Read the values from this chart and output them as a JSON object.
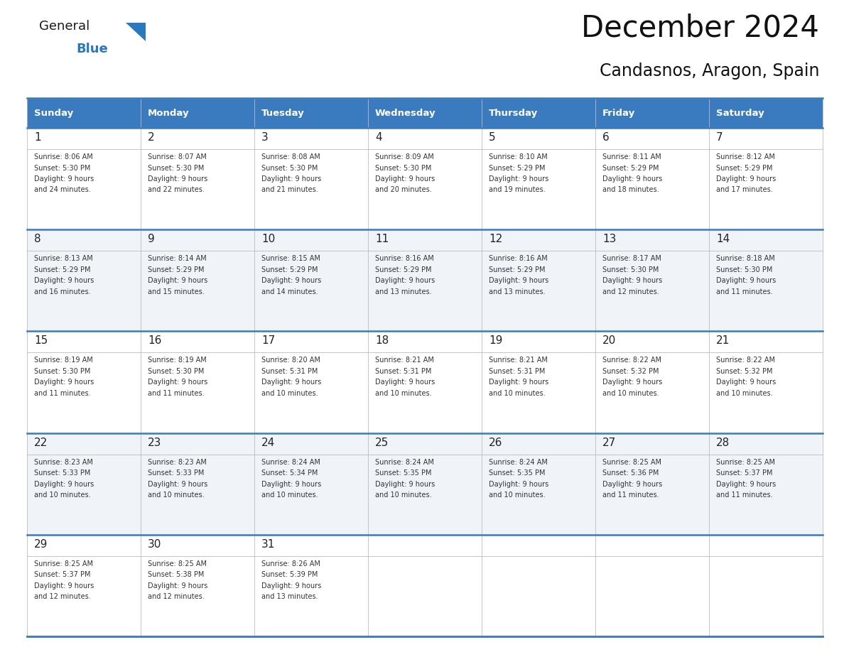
{
  "title": "December 2024",
  "subtitle": "Candasnos, Aragon, Spain",
  "header_bg": "#3a7abf",
  "header_text": "#ffffff",
  "row_bg_even": "#f0f4f8",
  "row_bg_odd": "#ffffff",
  "border_color": "#3a7abf",
  "day_headers": [
    "Sunday",
    "Monday",
    "Tuesday",
    "Wednesday",
    "Thursday",
    "Friday",
    "Saturday"
  ],
  "days": [
    {
      "day": 1,
      "col": 0,
      "row": 0,
      "sunrise": "8:06 AM",
      "sunset": "5:30 PM",
      "daylight_min": "24"
    },
    {
      "day": 2,
      "col": 1,
      "row": 0,
      "sunrise": "8:07 AM",
      "sunset": "5:30 PM",
      "daylight_min": "22"
    },
    {
      "day": 3,
      "col": 2,
      "row": 0,
      "sunrise": "8:08 AM",
      "sunset": "5:30 PM",
      "daylight_min": "21"
    },
    {
      "day": 4,
      "col": 3,
      "row": 0,
      "sunrise": "8:09 AM",
      "sunset": "5:30 PM",
      "daylight_min": "20"
    },
    {
      "day": 5,
      "col": 4,
      "row": 0,
      "sunrise": "8:10 AM",
      "sunset": "5:29 PM",
      "daylight_min": "19"
    },
    {
      "day": 6,
      "col": 5,
      "row": 0,
      "sunrise": "8:11 AM",
      "sunset": "5:29 PM",
      "daylight_min": "18"
    },
    {
      "day": 7,
      "col": 6,
      "row": 0,
      "sunrise": "8:12 AM",
      "sunset": "5:29 PM",
      "daylight_min": "17"
    },
    {
      "day": 8,
      "col": 0,
      "row": 1,
      "sunrise": "8:13 AM",
      "sunset": "5:29 PM",
      "daylight_min": "16"
    },
    {
      "day": 9,
      "col": 1,
      "row": 1,
      "sunrise": "8:14 AM",
      "sunset": "5:29 PM",
      "daylight_min": "15"
    },
    {
      "day": 10,
      "col": 2,
      "row": 1,
      "sunrise": "8:15 AM",
      "sunset": "5:29 PM",
      "daylight_min": "14"
    },
    {
      "day": 11,
      "col": 3,
      "row": 1,
      "sunrise": "8:16 AM",
      "sunset": "5:29 PM",
      "daylight_min": "13"
    },
    {
      "day": 12,
      "col": 4,
      "row": 1,
      "sunrise": "8:16 AM",
      "sunset": "5:29 PM",
      "daylight_min": "13"
    },
    {
      "day": 13,
      "col": 5,
      "row": 1,
      "sunrise": "8:17 AM",
      "sunset": "5:30 PM",
      "daylight_min": "12"
    },
    {
      "day": 14,
      "col": 6,
      "row": 1,
      "sunrise": "8:18 AM",
      "sunset": "5:30 PM",
      "daylight_min": "11"
    },
    {
      "day": 15,
      "col": 0,
      "row": 2,
      "sunrise": "8:19 AM",
      "sunset": "5:30 PM",
      "daylight_min": "11"
    },
    {
      "day": 16,
      "col": 1,
      "row": 2,
      "sunrise": "8:19 AM",
      "sunset": "5:30 PM",
      "daylight_min": "11"
    },
    {
      "day": 17,
      "col": 2,
      "row": 2,
      "sunrise": "8:20 AM",
      "sunset": "5:31 PM",
      "daylight_min": "10"
    },
    {
      "day": 18,
      "col": 3,
      "row": 2,
      "sunrise": "8:21 AM",
      "sunset": "5:31 PM",
      "daylight_min": "10"
    },
    {
      "day": 19,
      "col": 4,
      "row": 2,
      "sunrise": "8:21 AM",
      "sunset": "5:31 PM",
      "daylight_min": "10"
    },
    {
      "day": 20,
      "col": 5,
      "row": 2,
      "sunrise": "8:22 AM",
      "sunset": "5:32 PM",
      "daylight_min": "10"
    },
    {
      "day": 21,
      "col": 6,
      "row": 2,
      "sunrise": "8:22 AM",
      "sunset": "5:32 PM",
      "daylight_min": "10"
    },
    {
      "day": 22,
      "col": 0,
      "row": 3,
      "sunrise": "8:23 AM",
      "sunset": "5:33 PM",
      "daylight_min": "10"
    },
    {
      "day": 23,
      "col": 1,
      "row": 3,
      "sunrise": "8:23 AM",
      "sunset": "5:33 PM",
      "daylight_min": "10"
    },
    {
      "day": 24,
      "col": 2,
      "row": 3,
      "sunrise": "8:24 AM",
      "sunset": "5:34 PM",
      "daylight_min": "10"
    },
    {
      "day": 25,
      "col": 3,
      "row": 3,
      "sunrise": "8:24 AM",
      "sunset": "5:35 PM",
      "daylight_min": "10"
    },
    {
      "day": 26,
      "col": 4,
      "row": 3,
      "sunrise": "8:24 AM",
      "sunset": "5:35 PM",
      "daylight_min": "10"
    },
    {
      "day": 27,
      "col": 5,
      "row": 3,
      "sunrise": "8:25 AM",
      "sunset": "5:36 PM",
      "daylight_min": "11"
    },
    {
      "day": 28,
      "col": 6,
      "row": 3,
      "sunrise": "8:25 AM",
      "sunset": "5:37 PM",
      "daylight_min": "11"
    },
    {
      "day": 29,
      "col": 0,
      "row": 4,
      "sunrise": "8:25 AM",
      "sunset": "5:37 PM",
      "daylight_min": "12"
    },
    {
      "day": 30,
      "col": 1,
      "row": 4,
      "sunrise": "8:25 AM",
      "sunset": "5:38 PM",
      "daylight_min": "12"
    },
    {
      "day": 31,
      "col": 2,
      "row": 4,
      "sunrise": "8:26 AM",
      "sunset": "5:39 PM",
      "daylight_min": "13"
    }
  ],
  "num_rows": 5,
  "logo_general_color": "#1a1a1a",
  "logo_blue_color": "#2979c0",
  "logo_triangle_color": "#2979c0"
}
